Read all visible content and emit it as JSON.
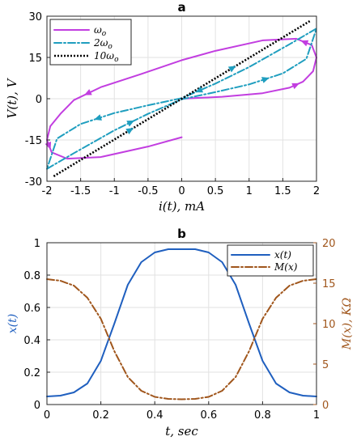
{
  "chart_data": [
    {
      "panel": "a",
      "type": "line",
      "title": "a",
      "xlabel": "i(t), mA",
      "ylabel": "V(t), V",
      "xlim": [
        -2,
        2
      ],
      "ylim": [
        -30,
        30
      ],
      "xticks": [
        "-2",
        "-1.5",
        "-1",
        "-0.5",
        "0",
        "0.5",
        "1",
        "1.5",
        "2"
      ],
      "yticks": [
        "-30",
        "-15",
        "0",
        "15",
        "30"
      ],
      "grid": true,
      "legend_position": "top-left",
      "series": [
        {
          "name": "ωo",
          "legend_label": "ω",
          "legend_sub": "o",
          "color": "#c23ee0",
          "style": "solid",
          "x": [
            0,
            0.6,
            1.2,
            1.6,
            1.8,
            1.95,
            2.0,
            1.93,
            1.7,
            1.2,
            0.5,
            0,
            -0.6,
            -1.2,
            -1.6,
            -1.8,
            -1.95,
            -2.0,
            -1.93,
            -1.7,
            -1.2,
            -0.5,
            0
          ],
          "y": [
            0,
            0.7,
            2.0,
            4.0,
            6.2,
            10.0,
            15.0,
            19.5,
            21.8,
            21.2,
            17.4,
            14.0,
            9.0,
            4.2,
            -0.5,
            -5.5,
            -10,
            -15,
            -19.5,
            -21.8,
            -21.2,
            -17.4,
            -14.0
          ]
        },
        {
          "name": "2ωo",
          "legend_label": "2ω",
          "legend_sub": "o",
          "color": "#1f9ebf",
          "style": "dashdot",
          "x": [
            -2.0,
            -1.6,
            -1.0,
            -0.5,
            0,
            0.5,
            1.0,
            1.5,
            1.85,
            2.0,
            1.6,
            1.0,
            0.5,
            0,
            -0.5,
            -1.0,
            -1.5,
            -1.85,
            -2.0
          ],
          "y": [
            -25.5,
            -19.8,
            -11.5,
            -5.5,
            -0.2,
            2.4,
            5.2,
            9.2,
            14.5,
            25.5,
            19.8,
            11.5,
            5.5,
            0.2,
            -2.4,
            -5.2,
            -9.2,
            -14.5,
            -25.5
          ]
        },
        {
          "name": "10ωo",
          "legend_label": "10ω",
          "legend_sub": "o",
          "color": "#000000",
          "style": "dotted",
          "x": [
            -1.9,
            1.9
          ],
          "y": [
            -28.2,
            28.2
          ]
        }
      ]
    },
    {
      "panel": "b",
      "type": "line",
      "title": "b",
      "xlabel": "t, sec",
      "ylabel": "x(t)",
      "y2label": "M(x), KΩ",
      "xlim": [
        0,
        1
      ],
      "ylim": [
        0,
        1
      ],
      "y2lim": [
        0,
        20
      ],
      "xticks": [
        "0",
        "0.2",
        "0.4",
        "0.6",
        "0.8",
        "1"
      ],
      "yticks": [
        "0",
        "0.2",
        "0.4",
        "0.6",
        "0.8",
        "1"
      ],
      "y2ticks": [
        "0",
        "5",
        "10",
        "15",
        "20"
      ],
      "grid": true,
      "legend_position": "top-right",
      "series": [
        {
          "name": "x(t)",
          "axis": "left",
          "color": "#1f5fbf",
          "style": "solid",
          "x": [
            0,
            0.05,
            0.1,
            0.15,
            0.2,
            0.25,
            0.3,
            0.35,
            0.4,
            0.45,
            0.5,
            0.55,
            0.6,
            0.65,
            0.7,
            0.75,
            0.8,
            0.85,
            0.9,
            0.95,
            1.0
          ],
          "y": [
            0.05,
            0.055,
            0.075,
            0.13,
            0.27,
            0.5,
            0.74,
            0.88,
            0.94,
            0.96,
            0.96,
            0.96,
            0.94,
            0.88,
            0.74,
            0.5,
            0.27,
            0.13,
            0.075,
            0.055,
            0.05
          ]
        },
        {
          "name": "M(x)",
          "axis": "right",
          "color": "#a0561c",
          "style": "dashdot",
          "x": [
            0,
            0.05,
            0.1,
            0.15,
            0.2,
            0.25,
            0.3,
            0.35,
            0.4,
            0.45,
            0.5,
            0.55,
            0.6,
            0.65,
            0.7,
            0.75,
            0.8,
            0.85,
            0.9,
            0.95,
            1.0
          ],
          "y": [
            15.5,
            15.3,
            14.7,
            13.2,
            10.6,
            6.6,
            3.4,
            1.7,
            0.95,
            0.7,
            0.65,
            0.7,
            0.95,
            1.7,
            3.4,
            6.6,
            10.6,
            13.2,
            14.7,
            15.3,
            15.5
          ]
        }
      ]
    }
  ]
}
